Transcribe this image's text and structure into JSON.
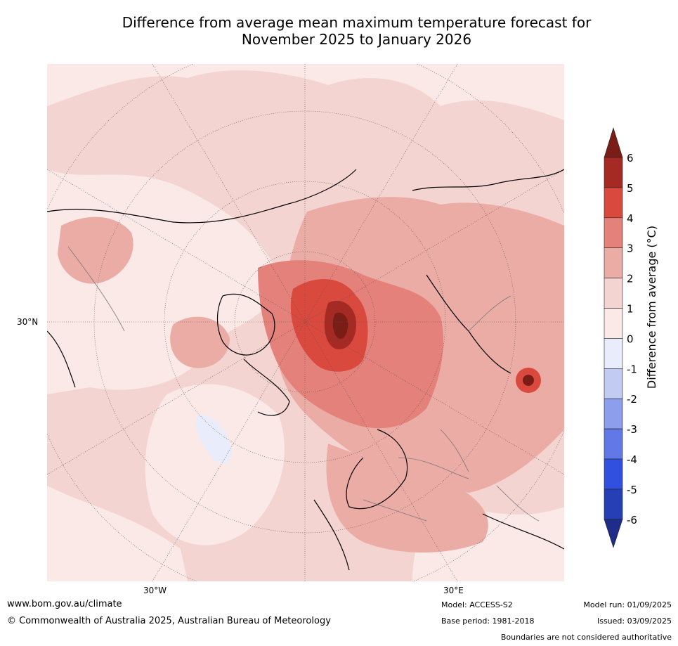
{
  "title": {
    "line1": "Difference from average mean maximum temperature forecast for",
    "line2": "November 2025 to January 2026"
  },
  "map": {
    "projection": "north polar stereographic",
    "lat_label": "30°N",
    "lon_labels": [
      "30°W",
      "30°E"
    ]
  },
  "colorbar": {
    "label": "Difference from average (°C)",
    "ticks": [
      "6",
      "5",
      "4",
      "3",
      "2",
      "1",
      "0",
      "-1",
      "-2",
      "-3",
      "-4",
      "-5",
      "-6"
    ],
    "colors": [
      "#a52a24",
      "#d9493e",
      "#e3817a",
      "#ecaca6",
      "#f4d4d1",
      "#fae9e7",
      "#e8ecfb",
      "#c2cbf2",
      "#8c9eec",
      "#6178e6",
      "#3250e0",
      "#263fb5"
    ],
    "over_color": "#7a1d17",
    "under_color": "#1e2c8a"
  },
  "footer": {
    "url": "www.bom.gov.au/climate",
    "copyright": "© Commonwealth of Australia 2025, Australian Bureau of Meteorology",
    "model": "Model: ACCESS-S2",
    "base_period": "Base period: 1981-2018",
    "model_run": "Model run: 01/09/2025",
    "issued": "Issued: 03/09/2025",
    "boundaries": "Boundaries are not considered authoritative"
  }
}
